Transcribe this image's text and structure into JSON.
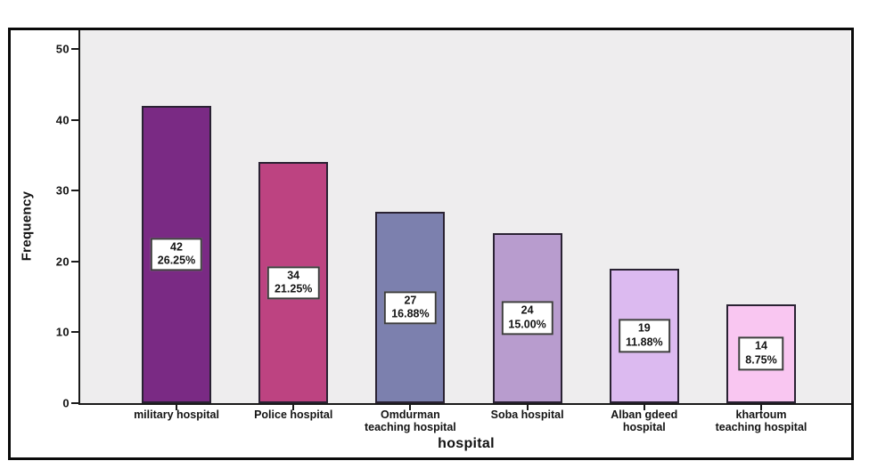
{
  "chart_data": {
    "type": "bar",
    "title": "",
    "xlabel": "hospital",
    "ylabel": "Frequency",
    "ylim": [
      0,
      50
    ],
    "yticks": [
      0,
      10,
      20,
      30,
      40,
      50
    ],
    "grid": false,
    "legend": null,
    "categories": [
      "military hospital",
      "Police hospital",
      "Omdurman teaching hospital",
      "Soba hospital",
      "Alban gdeed hospital",
      "khartoum teaching hospital"
    ],
    "category_display_lines": [
      [
        "military hospital"
      ],
      [
        "Police hospital"
      ],
      [
        "Omdurman",
        "teaching hospital"
      ],
      [
        "Soba hospital"
      ],
      [
        "Alban gdeed",
        "hospital"
      ],
      [
        "khartoum",
        "teaching hospital"
      ]
    ],
    "values": [
      42,
      34,
      27,
      24,
      19,
      14
    ],
    "percent_labels": [
      "26.25%",
      "21.25%",
      "16.88%",
      "15.00%",
      "11.88%",
      "8.75%"
    ],
    "bar_colors": [
      "#7a2a84",
      "#bd4381",
      "#7c80ae",
      "#b89cce",
      "#dcbaf0",
      "#f9c6f1"
    ],
    "colors": {
      "plot_background": "#eeedee",
      "bar_border": "#2a2233",
      "axis": "#1a1a1a",
      "frame": "#0a0a0a",
      "label_box_background": "#ffffff",
      "label_box_border": "#3d3d3d",
      "text": "#141414"
    }
  }
}
